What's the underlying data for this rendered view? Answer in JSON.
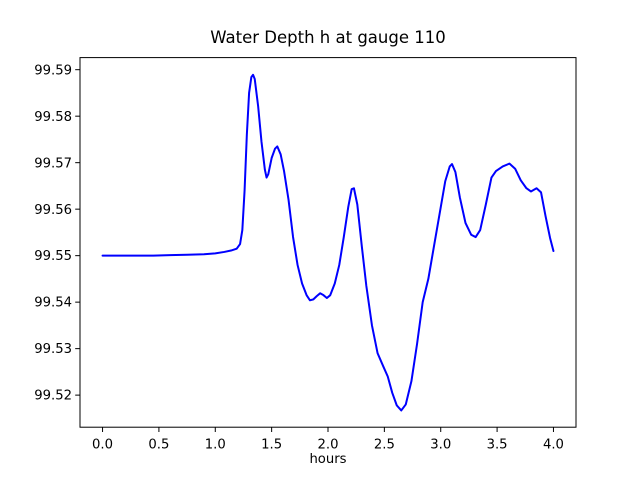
{
  "window": {
    "background": "#ffffff"
  },
  "chart_data": {
    "type": "line",
    "title": "Water Depth h at gauge 110",
    "xlabel": "hours",
    "ylabel": "",
    "xlim": [
      -0.2,
      4.2
    ],
    "ylim": [
      99.5131,
      99.5926
    ],
    "xticks": [
      0.0,
      0.5,
      1.0,
      1.5,
      2.0,
      2.5,
      3.0,
      3.5,
      4.0
    ],
    "xtick_labels": [
      "0.0",
      "0.5",
      "1.0",
      "1.5",
      "2.0",
      "2.5",
      "3.0",
      "3.5",
      "4.0"
    ],
    "yticks": [
      99.52,
      99.53,
      99.54,
      99.55,
      99.56,
      99.57,
      99.58,
      99.59
    ],
    "ytick_labels": [
      "99.52",
      "99.53",
      "99.54",
      "99.55",
      "99.56",
      "99.57",
      "99.58",
      "99.59"
    ],
    "grid": false,
    "legend_position": "none",
    "axis_color": "#000000",
    "series": [
      {
        "name": "Water Depth h",
        "color": "#0000ff",
        "points": [
          [
            0.0,
            99.55
          ],
          [
            0.15,
            99.55
          ],
          [
            0.3,
            99.55
          ],
          [
            0.45,
            99.55
          ],
          [
            0.6,
            99.5501
          ],
          [
            0.75,
            99.5502
          ],
          [
            0.9,
            99.5503
          ],
          [
            1.0,
            99.5505
          ],
          [
            1.08,
            99.5508
          ],
          [
            1.14,
            99.5511
          ],
          [
            1.19,
            99.5515
          ],
          [
            1.22,
            99.5525
          ],
          [
            1.24,
            99.5555
          ],
          [
            1.26,
            99.564
          ],
          [
            1.28,
            99.576
          ],
          [
            1.3,
            99.585
          ],
          [
            1.32,
            99.5884
          ],
          [
            1.335,
            99.5889
          ],
          [
            1.35,
            99.588
          ],
          [
            1.38,
            99.5822
          ],
          [
            1.41,
            99.5745
          ],
          [
            1.44,
            99.5685
          ],
          [
            1.455,
            99.5668
          ],
          [
            1.47,
            99.5675
          ],
          [
            1.5,
            99.571
          ],
          [
            1.53,
            99.573
          ],
          [
            1.55,
            99.5735
          ],
          [
            1.58,
            99.5718
          ],
          [
            1.61,
            99.5682
          ],
          [
            1.65,
            99.562
          ],
          [
            1.69,
            99.554
          ],
          [
            1.73,
            99.548
          ],
          [
            1.77,
            99.544
          ],
          [
            1.81,
            99.5415
          ],
          [
            1.84,
            99.5404
          ],
          [
            1.87,
            99.5406
          ],
          [
            1.9,
            99.5413
          ],
          [
            1.93,
            99.5419
          ],
          [
            1.96,
            99.5415
          ],
          [
            1.99,
            99.5409
          ],
          [
            2.02,
            99.5415
          ],
          [
            2.06,
            99.544
          ],
          [
            2.1,
            99.548
          ],
          [
            2.14,
            99.554
          ],
          [
            2.18,
            99.5605
          ],
          [
            2.21,
            99.5643
          ],
          [
            2.23,
            99.5645
          ],
          [
            2.26,
            99.561
          ],
          [
            2.3,
            99.552
          ],
          [
            2.34,
            99.5435
          ],
          [
            2.39,
            99.535
          ],
          [
            2.44,
            99.529
          ],
          [
            2.49,
            99.5262
          ],
          [
            2.53,
            99.524
          ],
          [
            2.57,
            99.5205
          ],
          [
            2.61,
            99.5178
          ],
          [
            2.65,
            99.5167
          ],
          [
            2.69,
            99.518
          ],
          [
            2.74,
            99.523
          ],
          [
            2.79,
            99.531
          ],
          [
            2.84,
            99.54
          ],
          [
            2.89,
            99.545
          ],
          [
            2.94,
            99.552
          ],
          [
            2.99,
            99.559
          ],
          [
            3.04,
            99.566
          ],
          [
            3.08,
            99.5692
          ],
          [
            3.1,
            99.5697
          ],
          [
            3.13,
            99.568
          ],
          [
            3.17,
            99.5625
          ],
          [
            3.22,
            99.557
          ],
          [
            3.27,
            99.5545
          ],
          [
            3.31,
            99.554
          ],
          [
            3.35,
            99.5555
          ],
          [
            3.4,
            99.561
          ],
          [
            3.45,
            99.5668
          ],
          [
            3.49,
            99.5682
          ],
          [
            3.55,
            99.5692
          ],
          [
            3.61,
            99.5698
          ],
          [
            3.66,
            99.5687
          ],
          [
            3.71,
            99.5662
          ],
          [
            3.76,
            99.5645
          ],
          [
            3.8,
            99.5638
          ],
          [
            3.85,
            99.5645
          ],
          [
            3.89,
            99.5636
          ],
          [
            3.93,
            99.5585
          ],
          [
            3.97,
            99.5538
          ],
          [
            4.0,
            99.551
          ]
        ]
      }
    ]
  }
}
